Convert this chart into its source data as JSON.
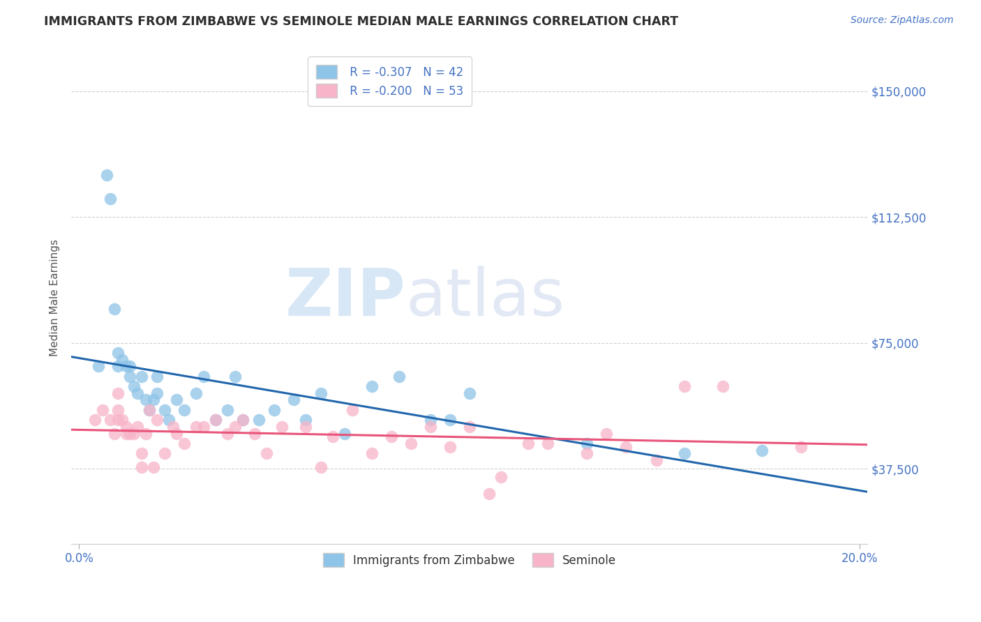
{
  "title": "IMMIGRANTS FROM ZIMBABWE VS SEMINOLE MEDIAN MALE EARNINGS CORRELATION CHART",
  "source": "Source: ZipAtlas.com",
  "ylabel": "Median Male Earnings",
  "xlim": [
    -0.002,
    0.202
  ],
  "ylim": [
    15000,
    162000
  ],
  "yticks": [
    37500,
    75000,
    112500,
    150000
  ],
  "ytick_labels": [
    "$37,500",
    "$75,000",
    "$112,500",
    "$150,000"
  ],
  "xticks": [
    0.0,
    0.2
  ],
  "xtick_labels": [
    "0.0%",
    "20.0%"
  ],
  "blue_label": "Immigrants from Zimbabwe",
  "pink_label": "Seminole",
  "blue_R": "R = -0.307",
  "blue_N": "N = 42",
  "pink_R": "R = -0.200",
  "pink_N": "N = 53",
  "blue_color": "#8ec4e8",
  "pink_color": "#f8b4c8",
  "blue_line_color": "#2166ac",
  "pink_line_color": "#e8547a",
  "title_color": "#2d2d2d",
  "axis_label_color": "#555555",
  "tick_color": "#4472c4",
  "grid_color": "#d0d0d0",
  "watermark_zip": "ZIP",
  "watermark_atlas": "atlas",
  "background_color": "#ffffff",
  "blue_x": [
    0.005,
    0.007,
    0.008,
    0.009,
    0.01,
    0.01,
    0.011,
    0.012,
    0.013,
    0.013,
    0.014,
    0.015,
    0.016,
    0.017,
    0.018,
    0.019,
    0.02,
    0.02,
    0.022,
    0.023,
    0.025,
    0.027,
    0.03,
    0.032,
    0.035,
    0.038,
    0.04,
    0.042,
    0.046,
    0.05,
    0.055,
    0.058,
    0.062,
    0.068,
    0.075,
    0.082,
    0.09,
    0.095,
    0.1,
    0.13,
    0.155,
    0.175
  ],
  "blue_y": [
    68000,
    125000,
    118000,
    85000,
    72000,
    68000,
    70000,
    68000,
    68000,
    65000,
    62000,
    60000,
    65000,
    58000,
    55000,
    58000,
    65000,
    60000,
    55000,
    52000,
    58000,
    55000,
    60000,
    65000,
    52000,
    55000,
    65000,
    52000,
    52000,
    55000,
    58000,
    52000,
    60000,
    48000,
    62000,
    65000,
    52000,
    52000,
    60000,
    45000,
    42000,
    43000
  ],
  "pink_x": [
    0.004,
    0.006,
    0.008,
    0.009,
    0.01,
    0.01,
    0.01,
    0.011,
    0.012,
    0.012,
    0.013,
    0.014,
    0.015,
    0.016,
    0.016,
    0.017,
    0.018,
    0.019,
    0.02,
    0.022,
    0.024,
    0.025,
    0.027,
    0.03,
    0.032,
    0.035,
    0.038,
    0.04,
    0.042,
    0.045,
    0.048,
    0.052,
    0.058,
    0.062,
    0.065,
    0.07,
    0.075,
    0.08,
    0.085,
    0.09,
    0.095,
    0.1,
    0.105,
    0.108,
    0.115,
    0.12,
    0.13,
    0.135,
    0.14,
    0.148,
    0.155,
    0.165,
    0.185
  ],
  "pink_y": [
    52000,
    55000,
    52000,
    48000,
    60000,
    55000,
    52000,
    52000,
    50000,
    48000,
    48000,
    48000,
    50000,
    42000,
    38000,
    48000,
    55000,
    38000,
    52000,
    42000,
    50000,
    48000,
    45000,
    50000,
    50000,
    52000,
    48000,
    50000,
    52000,
    48000,
    42000,
    50000,
    50000,
    38000,
    47000,
    55000,
    42000,
    47000,
    45000,
    50000,
    44000,
    50000,
    30000,
    35000,
    45000,
    45000,
    42000,
    48000,
    44000,
    40000,
    62000,
    62000,
    44000
  ]
}
